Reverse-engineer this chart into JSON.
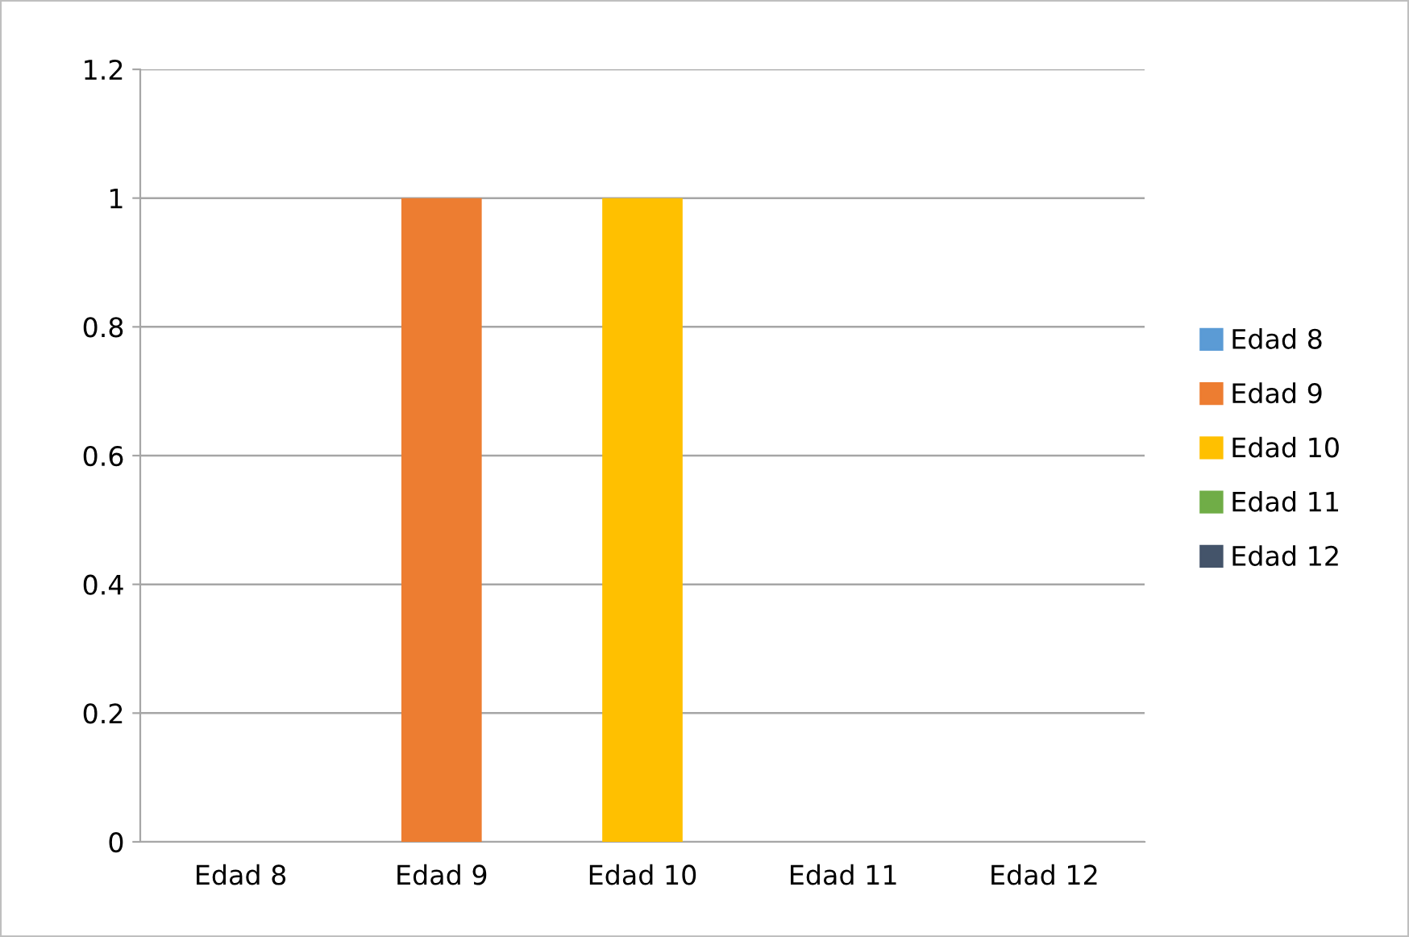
{
  "chart_data": {
    "type": "bar",
    "stacked": true,
    "categories": [
      "Edad 8",
      "Edad 9",
      "Edad 10",
      "Edad 11",
      "Edad 12"
    ],
    "series": [
      {
        "name": "Edad 8",
        "color": "#5b9bd5",
        "values": [
          0,
          null,
          null,
          null,
          null
        ]
      },
      {
        "name": "Edad 9",
        "color": "#ed7d31",
        "values": [
          null,
          1,
          null,
          null,
          null
        ]
      },
      {
        "name": "Edad 10",
        "color": "#ffc000",
        "values": [
          null,
          null,
          1,
          null,
          null
        ]
      },
      {
        "name": "Edad 11",
        "color": "#70ad47",
        "values": [
          null,
          null,
          null,
          0,
          null
        ]
      },
      {
        "name": "Edad 12",
        "color": "#44546a",
        "values": [
          null,
          null,
          null,
          null,
          0
        ]
      }
    ],
    "ylim": [
      0,
      1.2
    ],
    "yticks": [
      0,
      0.2,
      0.4,
      0.6,
      0.8,
      1,
      1.2
    ],
    "grid": "y",
    "legend": "right"
  }
}
